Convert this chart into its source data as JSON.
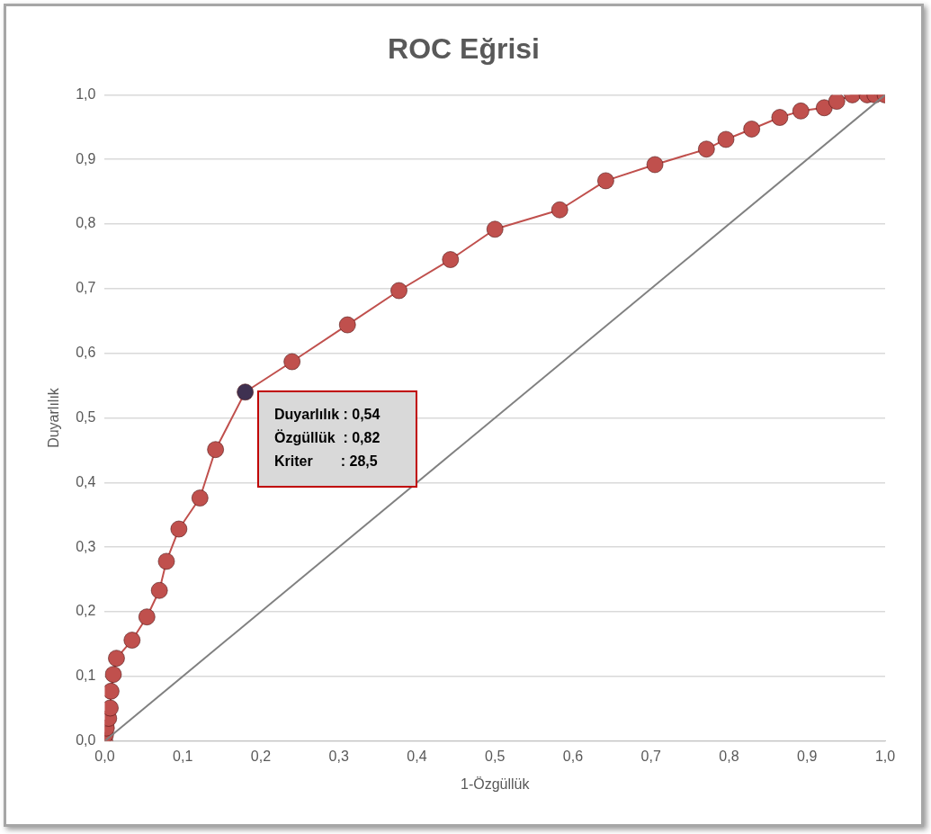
{
  "chart_data": {
    "type": "line",
    "title": "ROC Eğrisi",
    "xlabel": "1-Özgüllük",
    "ylabel": "Duyarlılık",
    "xlim": [
      0,
      1
    ],
    "ylim": [
      0,
      1
    ],
    "xticks": [
      {
        "value": 0,
        "label": "0,0"
      },
      {
        "value": 0.1,
        "label": "0,1"
      },
      {
        "value": 0.2,
        "label": "0,2"
      },
      {
        "value": 0.3,
        "label": "0,3"
      },
      {
        "value": 0.4,
        "label": "0,4"
      },
      {
        "value": 0.5,
        "label": "0,5"
      },
      {
        "value": 0.6,
        "label": "0,6"
      },
      {
        "value": 0.7,
        "label": "0,7"
      },
      {
        "value": 0.8,
        "label": "0,8"
      },
      {
        "value": 0.9,
        "label": "0,9"
      },
      {
        "value": 1,
        "label": "1,0"
      }
    ],
    "yticks": [
      {
        "value": 0,
        "label": "0,0"
      },
      {
        "value": 0.1,
        "label": "0,1"
      },
      {
        "value": 0.2,
        "label": "0,2"
      },
      {
        "value": 0.3,
        "label": "0,3"
      },
      {
        "value": 0.4,
        "label": "0,4"
      },
      {
        "value": 0.5,
        "label": "0,5"
      },
      {
        "value": 0.6,
        "label": "0,6"
      },
      {
        "value": 0.7,
        "label": "0,7"
      },
      {
        "value": 0.8,
        "label": "0,8"
      },
      {
        "value": 0.9,
        "label": "0,9"
      },
      {
        "value": 1,
        "label": "1,0"
      }
    ],
    "grid": "y",
    "legend": false,
    "series": [
      {
        "marker": "none",
        "color": "#808080",
        "x": [
          0,
          1
        ],
        "values": [
          0,
          1
        ]
      },
      {
        "marker": "circle",
        "color": "#c0504d",
        "colors": [
          "#c0504d",
          "#c0504d",
          "#c0504d",
          "#c0504d",
          "#c0504d",
          "#c0504d",
          "#c0504d",
          "#c0504d",
          "#c0504d",
          "#c0504d",
          "#c0504d",
          "#c0504d",
          "#c0504d",
          "#c0504d",
          "#c0504d",
          "#3f3151",
          "#c0504d",
          "#c0504d",
          "#c0504d",
          "#c0504d",
          "#c0504d",
          "#c0504d",
          "#c0504d",
          "#c0504d",
          "#c0504d",
          "#c0504d",
          "#c0504d",
          "#c0504d",
          "#c0504d",
          "#c0504d",
          "#c0504d",
          "#c0504d",
          "#c0504d",
          "#c0504d",
          "#c0504d"
        ],
        "x": [
          0,
          0.001,
          0.002,
          0.005,
          0.007,
          0.008,
          0.011,
          0.015,
          0.035,
          0.054,
          0.07,
          0.079,
          0.095,
          0.122,
          0.142,
          0.18,
          0.24,
          0.311,
          0.377,
          0.443,
          0.5,
          0.583,
          0.642,
          0.705,
          0.771,
          0.796,
          0.829,
          0.865,
          0.892,
          0.922,
          0.938,
          0.958,
          0.977,
          0.987,
          1
        ],
        "values": [
          0,
          0.01,
          0.02,
          0.035,
          0.051,
          0.077,
          0.103,
          0.128,
          0.156,
          0.192,
          0.233,
          0.278,
          0.328,
          0.376,
          0.451,
          0.54,
          0.587,
          0.644,
          0.697,
          0.745,
          0.792,
          0.822,
          0.867,
          0.892,
          0.916,
          0.931,
          0.947,
          0.965,
          0.975,
          0.98,
          0.99,
          1,
          1,
          1,
          1
        ]
      }
    ],
    "annotations": [
      "Duyarlılık : 0,54",
      "Özgüllük  : 0,82",
      "Kriter       : 28,5"
    ]
  }
}
